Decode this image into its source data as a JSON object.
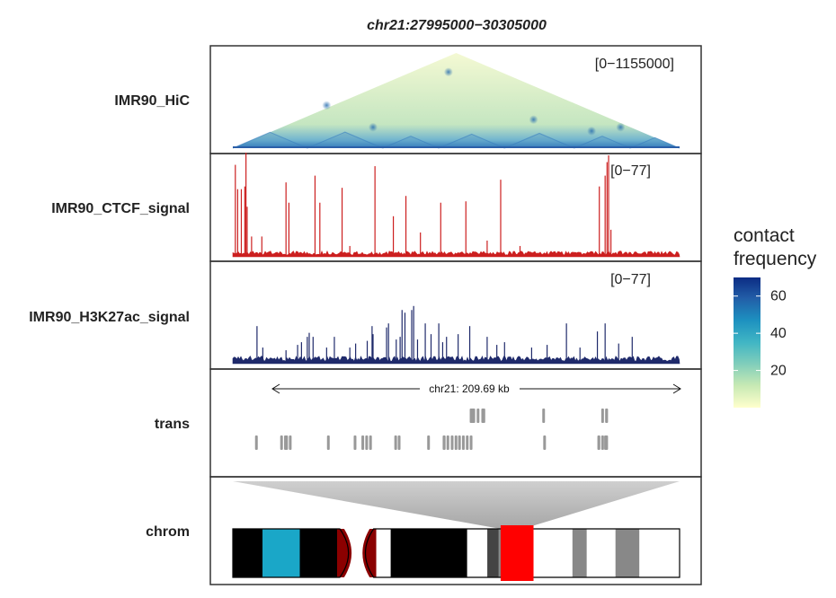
{
  "chart_data": {
    "type": "genome-tracks",
    "title": "chr21:27995000−30305000",
    "region": {
      "chrom": "chr21",
      "start": 27995000,
      "end": 30305000
    },
    "colors": {
      "ctcf": "#cc1f1f",
      "h3k27ac": "#1f2a6b",
      "transcript": "#999999",
      "highlight": "#ff0000",
      "centromere": "#8b0000"
    },
    "tracks": [
      {
        "name": "IMR90_HiC",
        "label": "IMR90_HiC",
        "type": "hic-triangle",
        "range": "[0−1155000]",
        "domain_boundaries_mb": [
          27.995,
          28.38,
          28.77,
          29.06,
          29.4,
          29.76,
          30.05,
          30.305
        ],
        "hotspots_mb": [
          [
            28.48,
            0.45
          ],
          [
            28.72,
            0.22
          ],
          [
            29.11,
            0.8
          ],
          [
            29.55,
            0.3
          ],
          [
            29.85,
            0.18
          ],
          [
            30.0,
            0.22
          ]
        ]
      },
      {
        "name": "IMR90_CTCF_signal",
        "label": "IMR90_CTCF_signal",
        "type": "signal",
        "range": "[0−77]",
        "ymax": 77,
        "baseline": 3,
        "peaks_mb": [
          [
            28.008,
            68
          ],
          [
            28.02,
            50
          ],
          [
            28.039,
            50
          ],
          [
            28.057,
            52
          ],
          [
            28.063,
            77
          ],
          [
            28.069,
            37
          ],
          [
            28.092,
            15
          ],
          [
            28.145,
            15
          ],
          [
            28.27,
            55
          ],
          [
            28.285,
            40
          ],
          [
            28.42,
            60
          ],
          [
            28.445,
            40
          ],
          [
            28.56,
            51
          ],
          [
            28.6,
            8
          ],
          [
            28.73,
            67
          ],
          [
            28.825,
            30
          ],
          [
            28.89,
            45
          ],
          [
            28.965,
            18
          ],
          [
            29.07,
            40
          ],
          [
            29.2,
            41
          ],
          [
            29.31,
            12
          ],
          [
            29.38,
            57
          ],
          [
            29.48,
            8
          ],
          [
            29.89,
            52
          ],
          [
            29.92,
            60
          ],
          [
            29.93,
            70
          ],
          [
            29.938,
            75
          ],
          [
            29.95,
            20
          ]
        ]
      },
      {
        "name": "IMR90_H3K27ac_signal",
        "label": "IMR90_H3K27ac_signal",
        "type": "signal",
        "range": "[0−77]",
        "ymax": 77,
        "baseline": 4,
        "peaks_mb": [
          [
            28.12,
            28
          ],
          [
            28.15,
            12
          ],
          [
            28.27,
            10
          ],
          [
            28.33,
            14
          ],
          [
            28.35,
            16
          ],
          [
            28.38,
            20
          ],
          [
            28.39,
            23
          ],
          [
            28.41,
            20
          ],
          [
            28.48,
            12
          ],
          [
            28.52,
            20
          ],
          [
            28.6,
            12
          ],
          [
            28.63,
            15
          ],
          [
            28.69,
            17
          ],
          [
            28.715,
            28
          ],
          [
            28.72,
            22
          ],
          [
            28.79,
            27
          ],
          [
            28.8,
            30
          ],
          [
            28.84,
            18
          ],
          [
            28.86,
            20
          ],
          [
            28.87,
            40
          ],
          [
            28.885,
            38
          ],
          [
            28.92,
            40
          ],
          [
            28.93,
            43
          ],
          [
            28.95,
            18
          ],
          [
            28.99,
            30
          ],
          [
            29.02,
            22
          ],
          [
            29.06,
            30
          ],
          [
            29.08,
            16
          ],
          [
            29.1,
            20
          ],
          [
            29.16,
            22
          ],
          [
            29.22,
            28
          ],
          [
            29.31,
            20
          ],
          [
            29.36,
            14
          ],
          [
            29.4,
            16
          ],
          [
            29.54,
            12
          ],
          [
            29.62,
            14
          ],
          [
            29.72,
            30
          ],
          [
            29.79,
            12
          ],
          [
            29.88,
            24
          ],
          [
            29.92,
            30
          ],
          [
            29.99,
            15
          ],
          [
            30.06,
            20
          ]
        ]
      },
      {
        "name": "trans",
        "label": "trans",
        "type": "transcripts",
        "scale_label": "chr21: 209.69 kb",
        "rows": [
          [
            [
              29.22,
              29.248
            ],
            [
              29.256,
              29.268
            ],
            [
              29.28,
              29.3
            ],
            [
              29.595,
              29.605
            ],
            [
              29.9,
              29.912
            ],
            [
              29.92,
              29.935
            ]
          ],
          [
            [
              28.11,
              28.122
            ],
            [
              28.24,
              28.25
            ],
            [
              28.26,
              28.28
            ],
            [
              28.285,
              28.298
            ],
            [
              28.482,
              28.495
            ],
            [
              28.62,
              28.63
            ],
            [
              28.66,
              28.67
            ],
            [
              28.68,
              28.692
            ],
            [
              28.7,
              28.712
            ],
            [
              28.83,
              28.842
            ],
            [
              28.848,
              28.858
            ],
            [
              29.0,
              29.012
            ],
            [
              29.08,
              29.095
            ],
            [
              29.1,
              29.112
            ],
            [
              29.122,
              29.135
            ],
            [
              29.142,
              29.155
            ],
            [
              29.16,
              29.17
            ],
            [
              29.18,
              29.19
            ],
            [
              29.2,
              29.212
            ],
            [
              29.22,
              29.232
            ],
            [
              29.6,
              29.61
            ],
            [
              29.88,
              29.895
            ],
            [
              29.9,
              29.91
            ],
            [
              29.915,
              29.935
            ]
          ]
        ]
      },
      {
        "name": "chrom",
        "label": "chrom",
        "type": "ideogram",
        "length_mb": 46.7,
        "highlight_mb": [
          27.995,
          30.305
        ],
        "bands": [
          {
            "start": 0.0,
            "end": 3.1,
            "stain": "#000000"
          },
          {
            "start": 3.1,
            "end": 7.0,
            "stain": "#1aa7c8"
          },
          {
            "start": 7.0,
            "end": 10.9,
            "stain": "#000000"
          },
          {
            "start": 10.9,
            "end": 13.0,
            "stain": "#8b0000",
            "cen": "p"
          },
          {
            "start": 13.0,
            "end": 15.0,
            "stain": "#8b0000",
            "cen": "q"
          },
          {
            "start": 15.0,
            "end": 16.5,
            "stain": "#ffffff"
          },
          {
            "start": 16.5,
            "end": 24.5,
            "stain": "#000000"
          },
          {
            "start": 24.5,
            "end": 26.6,
            "stain": "#ffffff"
          },
          {
            "start": 26.6,
            "end": 27.8,
            "stain": "#444444"
          },
          {
            "start": 27.8,
            "end": 30.5,
            "stain": "#888888"
          },
          {
            "start": 30.5,
            "end": 35.5,
            "stain": "#ffffff"
          },
          {
            "start": 35.5,
            "end": 37.0,
            "stain": "#888888"
          },
          {
            "start": 37.0,
            "end": 40.0,
            "stain": "#ffffff"
          },
          {
            "start": 40.0,
            "end": 42.5,
            "stain": "#888888"
          },
          {
            "start": 42.5,
            "end": 46.7,
            "stain": "#ffffff"
          }
        ]
      }
    ],
    "legend": {
      "title_lines": [
        "contact",
        "frequency"
      ],
      "ticks": [
        "20",
        "40",
        "60"
      ],
      "tick_values": [
        20,
        40,
        60
      ],
      "range": [
        0,
        70
      ],
      "gradient": [
        "#ffffcc",
        "#c7e9b4",
        "#7fcdbb",
        "#41b6c4",
        "#1d91c0",
        "#225ea8",
        "#0c2c84"
      ]
    }
  }
}
